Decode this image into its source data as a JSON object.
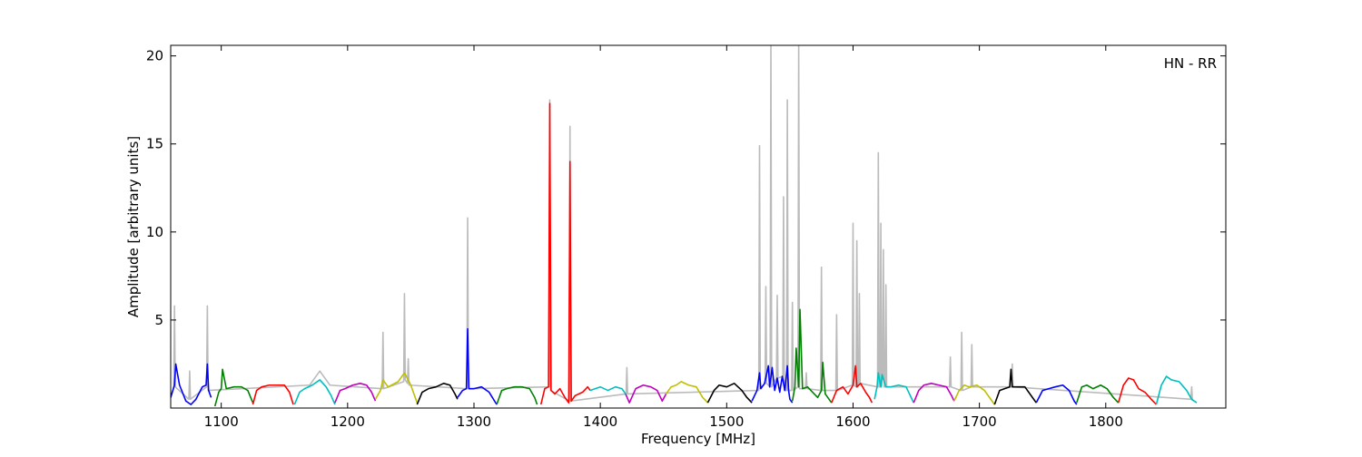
{
  "chart_data": {
    "type": "line",
    "xlabel": "Frequency [MHz]",
    "ylabel": "Amplitude [arbitrary units]",
    "annotation": "HN - RR",
    "xlim": [
      1060,
      1895
    ],
    "ylim": [
      0,
      20.6
    ],
    "xticks": [
      1100,
      1200,
      1300,
      1400,
      1500,
      1600,
      1700,
      1800
    ],
    "yticks": [
      5,
      10,
      15,
      20
    ],
    "series": [
      {
        "color": "#bbbbbb",
        "x": [
          1060,
          1062.4,
          1063,
          1063.6,
          1074.4,
          1075,
          1075.6,
          1088.4,
          1089,
          1089.6,
          1170,
          1178,
          1186,
          1227.4,
          1228,
          1228.6,
          1244.4,
          1245,
          1245.6,
          1247.4,
          1248,
          1248.6,
          1294.4,
          1295,
          1295.6,
          1359.4,
          1360,
          1360.6,
          1375.4,
          1376,
          1376.6,
          1420.4,
          1421,
          1421.6,
          1525.4,
          1526,
          1526.6,
          1530.4,
          1531,
          1531.6,
          1534.4,
          1535,
          1535.6,
          1539.4,
          1540,
          1540.6,
          1544.4,
          1545,
          1545.6,
          1547.4,
          1548,
          1548.6,
          1551.4,
          1552,
          1552.6,
          1556.4,
          1557,
          1557.6,
          1562.4,
          1563,
          1563.6,
          1574.4,
          1575,
          1575.6,
          1586.4,
          1587,
          1587.6,
          1599.4,
          1600,
          1600.6,
          1602.4,
          1603,
          1603.6,
          1604.4,
          1605,
          1605.6,
          1619.4,
          1620,
          1620.6,
          1621.4,
          1622,
          1622.6,
          1623.4,
          1624,
          1624.6,
          1625.4,
          1626,
          1626.6,
          1676.4,
          1677,
          1677.6,
          1685.4,
          1686,
          1686.6,
          1693.4,
          1694,
          1694.6,
          1725.4,
          1726,
          1726.6,
          1867.4,
          1868,
          1868.6
        ],
        "values": [
          0.6,
          1.2,
          5.8,
          1.2,
          0.5,
          2.1,
          0.5,
          1.2,
          5.8,
          1.0,
          1.3,
          2.1,
          1.3,
          1.1,
          4.3,
          1.1,
          1.5,
          6.5,
          1.6,
          1.4,
          2.8,
          1.3,
          1.1,
          10.8,
          1.1,
          1.2,
          17.5,
          1.0,
          0.4,
          16.0,
          0.4,
          0.8,
          2.3,
          0.8,
          1.0,
          14.9,
          1.1,
          1.4,
          6.9,
          1.4,
          1.2,
          20.6,
          1.2,
          1.7,
          6.4,
          1.7,
          1.8,
          12.0,
          1.0,
          1.0,
          17.5,
          1.0,
          1.0,
          6.0,
          1.0,
          1.2,
          20.6,
          1.1,
          1.1,
          2.0,
          1.1,
          1.0,
          8.0,
          1.0,
          1.0,
          5.3,
          1.0,
          1.3,
          10.5,
          1.3,
          1.2,
          9.5,
          1.2,
          1.4,
          6.5,
          1.4,
          1.2,
          14.5,
          1.2,
          1.2,
          10.5,
          1.2,
          1.9,
          9.0,
          1.2,
          1.2,
          7.0,
          1.2,
          1.2,
          2.9,
          1.2,
          1.0,
          4.3,
          1.0,
          1.2,
          3.6,
          1.2,
          1.2,
          2.5,
          1.2,
          0.5,
          1.2,
          0.4
        ]
      },
      {
        "color": "#0000ff",
        "x": [
          1060,
          1063,
          1064,
          1067,
          1072,
          1076,
          1080,
          1085,
          1088,
          1089,
          1090,
          1092
        ],
        "values": [
          0.6,
          1.3,
          2.5,
          1.3,
          0.4,
          0.2,
          0.5,
          1.2,
          1.3,
          2.5,
          1.0,
          0.6
        ]
      },
      {
        "color": "#008000",
        "x": [
          1095,
          1098,
          1100,
          1101,
          1104,
          1110,
          1116,
          1121,
          1125
        ],
        "values": [
          0.1,
          0.9,
          1.1,
          2.2,
          1.1,
          1.2,
          1.2,
          1.0,
          0.3
        ]
      },
      {
        "color": "#ff0000",
        "x": [
          1125,
          1128,
          1132,
          1138,
          1144,
          1150,
          1154,
          1157
        ],
        "values": [
          0.2,
          1.0,
          1.2,
          1.3,
          1.3,
          1.3,
          0.9,
          0.2
        ]
      },
      {
        "color": "#00bfbf",
        "x": [
          1158,
          1162,
          1166,
          1172,
          1178,
          1183,
          1187,
          1190
        ],
        "values": [
          0.2,
          0.9,
          1.1,
          1.3,
          1.6,
          1.2,
          0.7,
          0.2
        ]
      },
      {
        "color": "#bf00bf",
        "x": [
          1190,
          1194,
          1198,
          1204,
          1210,
          1215,
          1219,
          1222
        ],
        "values": [
          0.3,
          1.0,
          1.1,
          1.3,
          1.4,
          1.3,
          0.9,
          0.4
        ]
      },
      {
        "color": "#bfbf00",
        "x": [
          1222,
          1226,
          1228,
          1232,
          1240,
          1245,
          1250,
          1255
        ],
        "values": [
          0.5,
          1.0,
          1.6,
          1.2,
          1.5,
          2.0,
          1.3,
          0.3
        ]
      },
      {
        "color": "#000000",
        "x": [
          1255,
          1259,
          1264,
          1270,
          1276,
          1281,
          1285,
          1287
        ],
        "values": [
          0.2,
          0.9,
          1.1,
          1.2,
          1.4,
          1.3,
          0.8,
          0.5
        ]
      },
      {
        "color": "#0000ff",
        "x": [
          1287,
          1291,
          1294,
          1295,
          1296,
          1300,
          1306,
          1312,
          1318
        ],
        "values": [
          0.6,
          1.0,
          1.1,
          4.5,
          1.1,
          1.1,
          1.2,
          0.9,
          0.2
        ]
      },
      {
        "color": "#008000",
        "x": [
          1318,
          1322,
          1326,
          1332,
          1338,
          1344,
          1348,
          1350
        ],
        "values": [
          0.2,
          1.0,
          1.1,
          1.2,
          1.2,
          1.1,
          0.6,
          0.2
        ]
      },
      {
        "color": "#ff0000",
        "x": [
          1353,
          1356,
          1359,
          1360,
          1361,
          1364,
          1368,
          1372,
          1375,
          1376,
          1377,
          1380,
          1386,
          1390,
          1392
        ],
        "values": [
          0.2,
          1.1,
          1.2,
          17.3,
          1.0,
          0.8,
          1.1,
          0.6,
          0.3,
          14.0,
          0.4,
          0.7,
          0.9,
          1.2,
          1.0
        ]
      },
      {
        "color": "#00bfbf",
        "x": [
          1392,
          1396,
          1400,
          1406,
          1412,
          1417,
          1420
        ],
        "values": [
          1.0,
          1.1,
          1.2,
          1.0,
          1.2,
          1.1,
          0.8
        ]
      },
      {
        "color": "#bf00bf",
        "x": [
          1420,
          1423,
          1428,
          1434,
          1440,
          1445,
          1449,
          1452
        ],
        "values": [
          0.8,
          0.3,
          1.1,
          1.3,
          1.2,
          1.0,
          0.4,
          0.8
        ]
      },
      {
        "color": "#bfbf00",
        "x": [
          1452,
          1456,
          1460,
          1464,
          1470,
          1476,
          1481,
          1485
        ],
        "values": [
          0.8,
          1.2,
          1.3,
          1.5,
          1.3,
          1.2,
          0.6,
          0.3
        ]
      },
      {
        "color": "#000000",
        "x": [
          1485,
          1490,
          1494,
          1500,
          1506,
          1512,
          1516,
          1520
        ],
        "values": [
          0.3,
          1.0,
          1.3,
          1.2,
          1.4,
          1.0,
          0.6,
          0.3
        ]
      },
      {
        "color": "#0000ff",
        "x": [
          1520,
          1524,
          1526,
          1527,
          1530,
          1533,
          1534,
          1536,
          1538,
          1540,
          1542,
          1544,
          1546,
          1548,
          1549,
          1550,
          1552
        ],
        "values": [
          0.4,
          1.0,
          2.0,
          1.1,
          1.4,
          2.4,
          1.2,
          2.3,
          1.0,
          1.7,
          0.9,
          1.8,
          1.0,
          2.4,
          1.0,
          0.5,
          0.3
        ]
      },
      {
        "color": "#008000",
        "x": [
          1552,
          1554,
          1555,
          1557,
          1558,
          1560,
          1564,
          1568,
          1572,
          1575,
          1576,
          1578,
          1583
        ],
        "values": [
          0.4,
          1.2,
          3.4,
          1.2,
          5.6,
          1.1,
          1.2,
          0.9,
          0.6,
          1.0,
          2.6,
          0.8,
          0.3
        ]
      },
      {
        "color": "#ff0000",
        "x": [
          1583,
          1587,
          1592,
          1596,
          1600,
          1602,
          1603,
          1606,
          1610,
          1613,
          1615
        ],
        "values": [
          0.3,
          1.0,
          1.2,
          0.8,
          1.3,
          2.4,
          1.2,
          1.4,
          0.9,
          0.6,
          0.3
        ]
      },
      {
        "color": "#00bfbf",
        "x": [
          1617,
          1619,
          1620,
          1622,
          1623,
          1626,
          1630,
          1636,
          1642,
          1646,
          1648
        ],
        "values": [
          0.5,
          1.2,
          2.0,
          1.2,
          1.9,
          1.2,
          1.2,
          1.3,
          1.2,
          0.6,
          0.3
        ]
      },
      {
        "color": "#bf00bf",
        "x": [
          1648,
          1652,
          1656,
          1662,
          1668,
          1674,
          1678,
          1680
        ],
        "values": [
          0.3,
          1.0,
          1.3,
          1.4,
          1.3,
          1.2,
          0.7,
          0.4
        ]
      },
      {
        "color": "#bfbf00",
        "x": [
          1680,
          1684,
          1688,
          1692,
          1698,
          1704,
          1708,
          1712
        ],
        "values": [
          0.4,
          1.0,
          1.3,
          1.2,
          1.3,
          1.0,
          0.6,
          0.2
        ]
      },
      {
        "color": "#000000",
        "x": [
          1712,
          1716,
          1720,
          1724,
          1725,
          1726,
          1730,
          1736,
          1742,
          1745
        ],
        "values": [
          0.2,
          1.0,
          1.1,
          1.2,
          2.2,
          1.2,
          1.2,
          1.2,
          0.6,
          0.3
        ]
      },
      {
        "color": "#0000ff",
        "x": [
          1745,
          1750,
          1755,
          1760,
          1766,
          1771,
          1775,
          1777
        ],
        "values": [
          0.3,
          1.0,
          1.1,
          1.2,
          1.3,
          1.0,
          0.4,
          0.2
        ]
      },
      {
        "color": "#008000",
        "x": [
          1777,
          1781,
          1785,
          1790,
          1796,
          1801,
          1806,
          1810
        ],
        "values": [
          0.3,
          1.2,
          1.3,
          1.1,
          1.3,
          1.1,
          0.6,
          0.3
        ]
      },
      {
        "color": "#ff0000",
        "x": [
          1810,
          1814,
          1818,
          1822,
          1826,
          1831,
          1836,
          1840
        ],
        "values": [
          0.3,
          1.3,
          1.7,
          1.6,
          1.1,
          0.9,
          0.5,
          0.2
        ]
      },
      {
        "color": "#00bfbf",
        "x": [
          1840,
          1844,
          1848,
          1852,
          1858,
          1864,
          1868,
          1872
        ],
        "values": [
          0.2,
          1.3,
          1.8,
          1.6,
          1.5,
          1.0,
          0.5,
          0.3
        ]
      }
    ]
  }
}
